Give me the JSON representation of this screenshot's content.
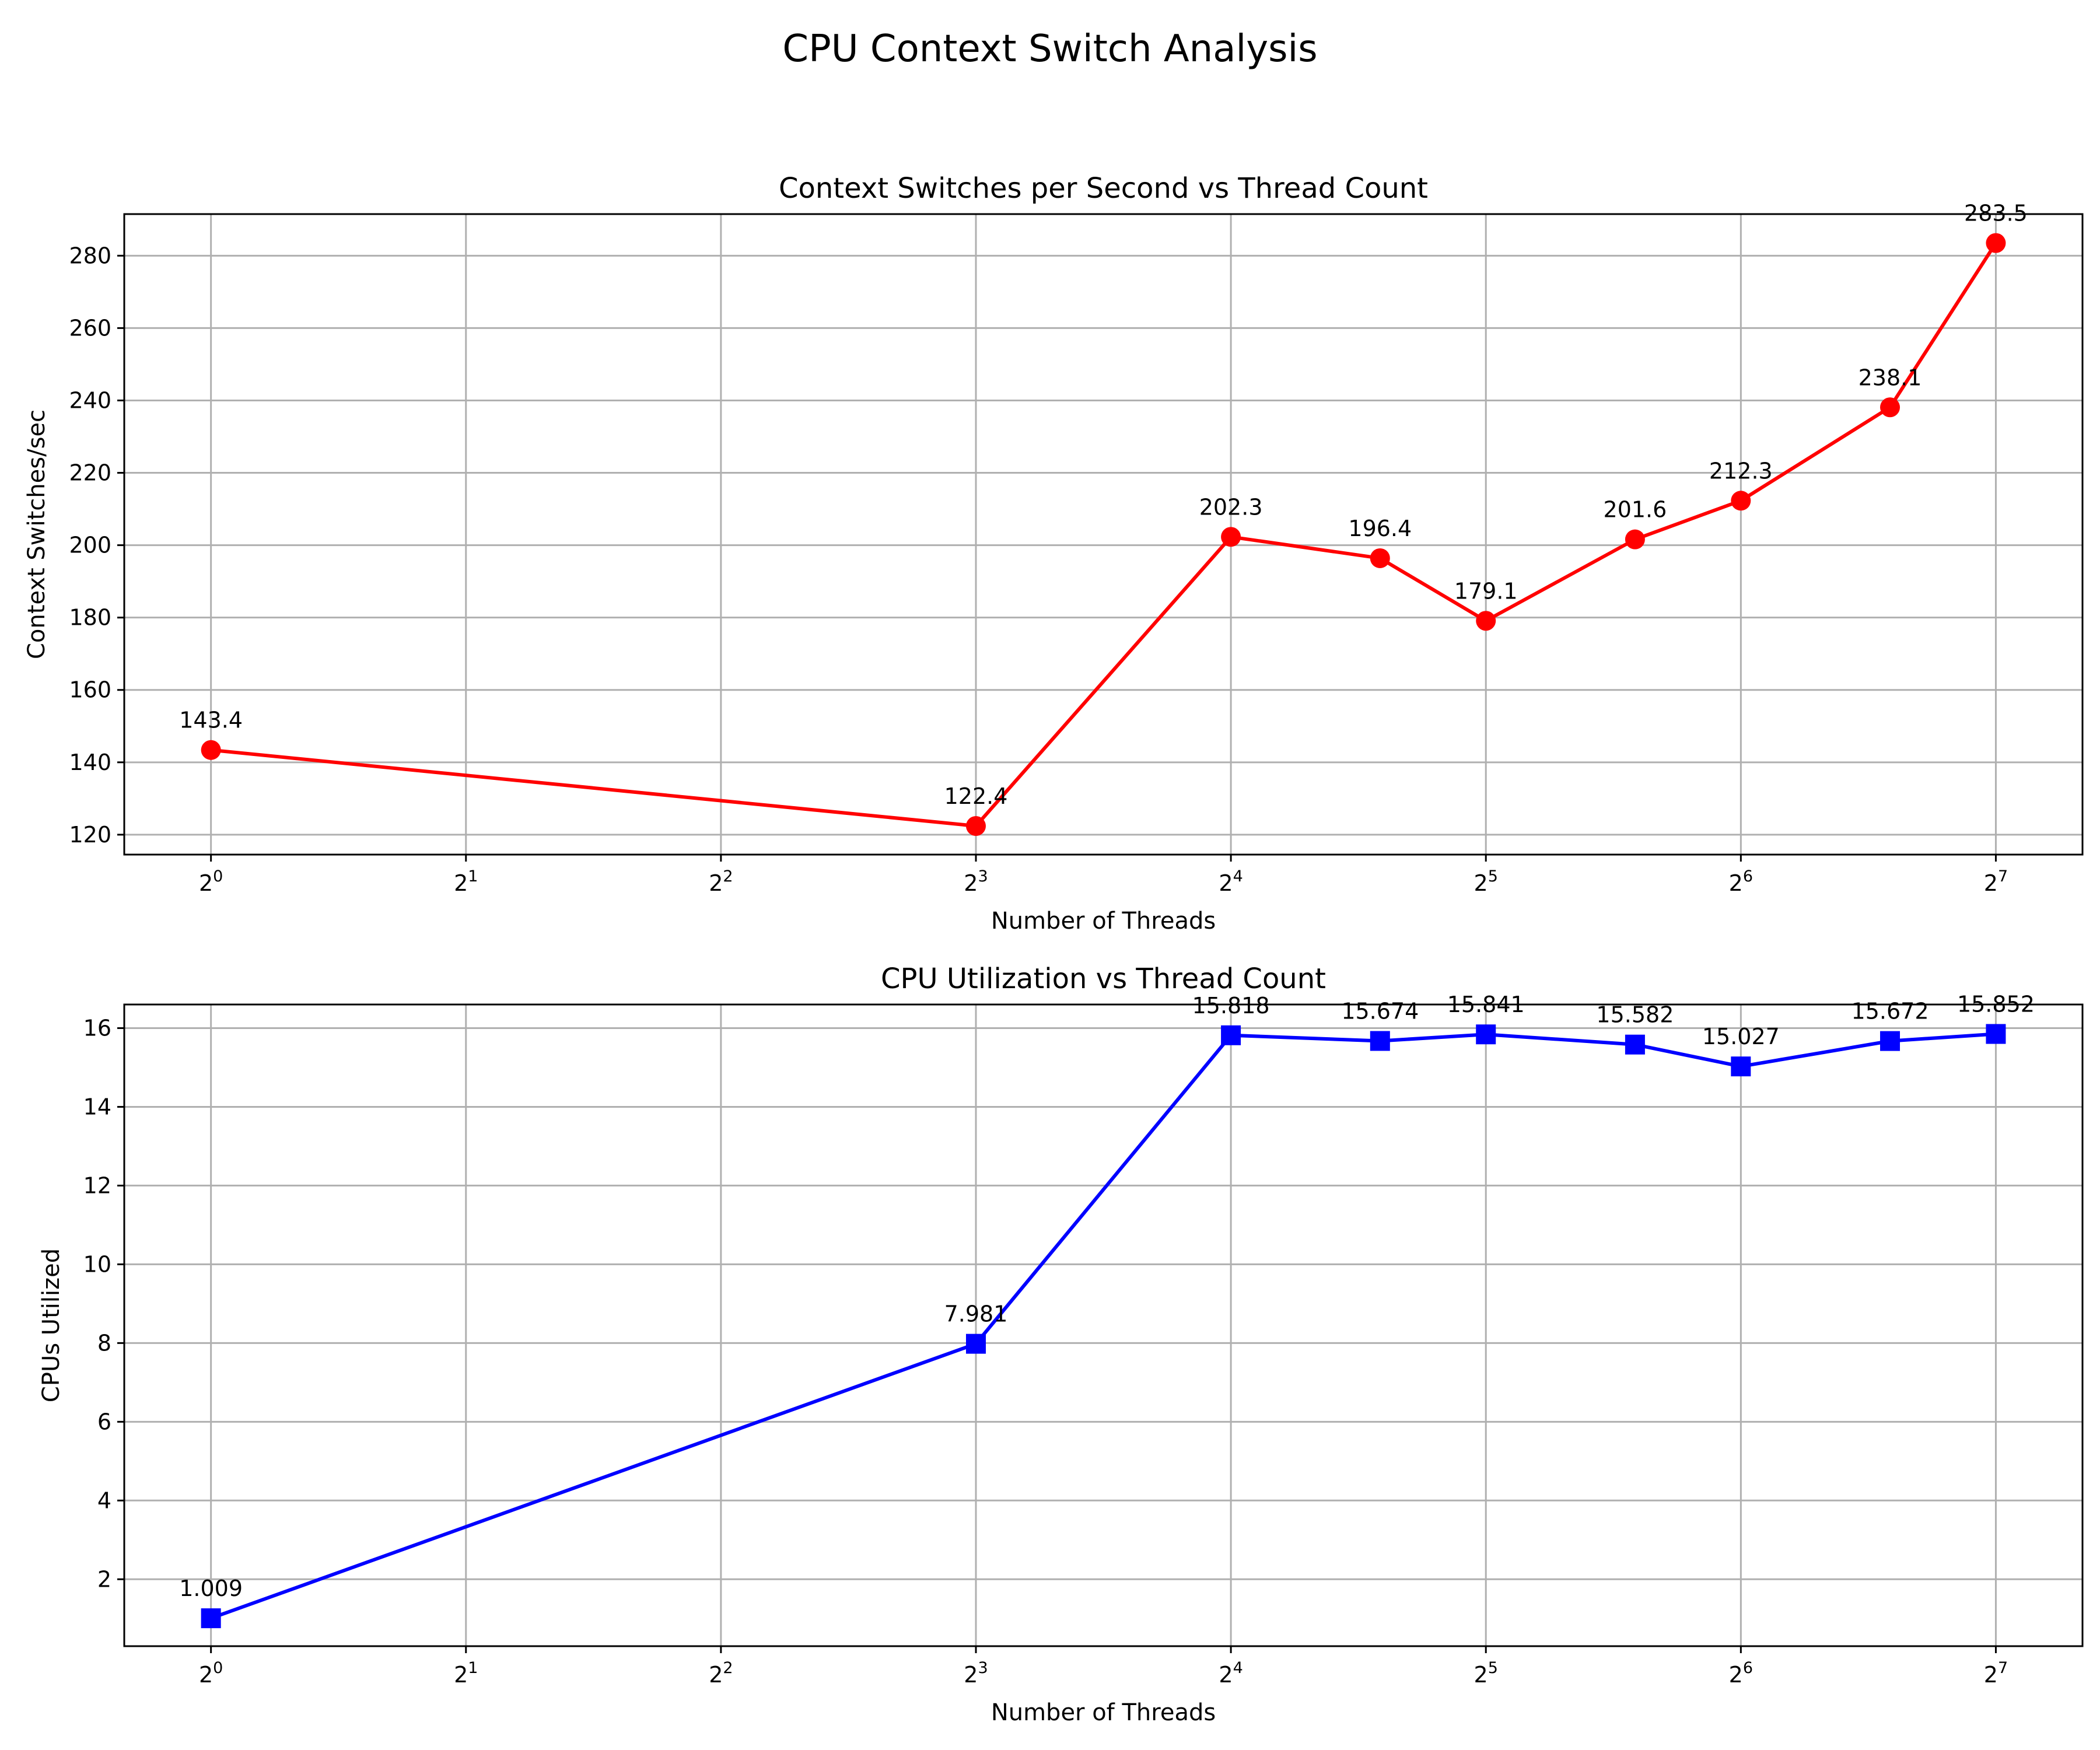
{
  "suptitle": "CPU Context Switch Analysis",
  "chart_data": [
    {
      "type": "line",
      "title": "Context Switches per Second vs Thread Count",
      "xlabel": "Number of Threads",
      "ylabel": "Context Switches/sec",
      "xscale": "log2",
      "xlim": [
        0.79,
        162
      ],
      "ylim": [
        114.5,
        291.5
      ],
      "xticks": [
        1,
        2,
        4,
        8,
        16,
        32,
        64,
        128
      ],
      "yticks": [
        120,
        140,
        160,
        180,
        200,
        220,
        240,
        260,
        280
      ],
      "grid": true,
      "series": [
        {
          "color": "#ff0000",
          "marker": "circle",
          "x": [
            1,
            8,
            16,
            24,
            32,
            48,
            64,
            96,
            128
          ],
          "y": [
            143.4,
            122.4,
            202.3,
            196.4,
            179.1,
            201.6,
            212.3,
            238.1,
            283.5
          ],
          "labels": [
            "143.4",
            "122.4",
            "202.3",
            "196.4",
            "179.1",
            "201.6",
            "212.3",
            "238.1",
            "283.5"
          ]
        }
      ]
    },
    {
      "type": "line",
      "title": "CPU Utilization vs Thread Count",
      "xlabel": "Number of Threads",
      "ylabel": "CPUs Utilized",
      "xscale": "log2",
      "xlim": [
        0.79,
        162
      ],
      "ylim": [
        0.3,
        16.6
      ],
      "xticks": [
        1,
        2,
        4,
        8,
        16,
        32,
        64,
        128
      ],
      "yticks": [
        2,
        4,
        6,
        8,
        10,
        12,
        14,
        16
      ],
      "grid": true,
      "series": [
        {
          "color": "#0000ff",
          "marker": "square",
          "x": [
            1,
            8,
            16,
            24,
            32,
            48,
            64,
            96,
            128
          ],
          "y": [
            1.009,
            7.981,
            15.818,
            15.674,
            15.841,
            15.582,
            15.027,
            15.672,
            15.852
          ],
          "labels": [
            "1.009",
            "7.981",
            "15.818",
            "15.674",
            "15.841",
            "15.582",
            "15.027",
            "15.672",
            "15.852"
          ]
        }
      ]
    }
  ]
}
